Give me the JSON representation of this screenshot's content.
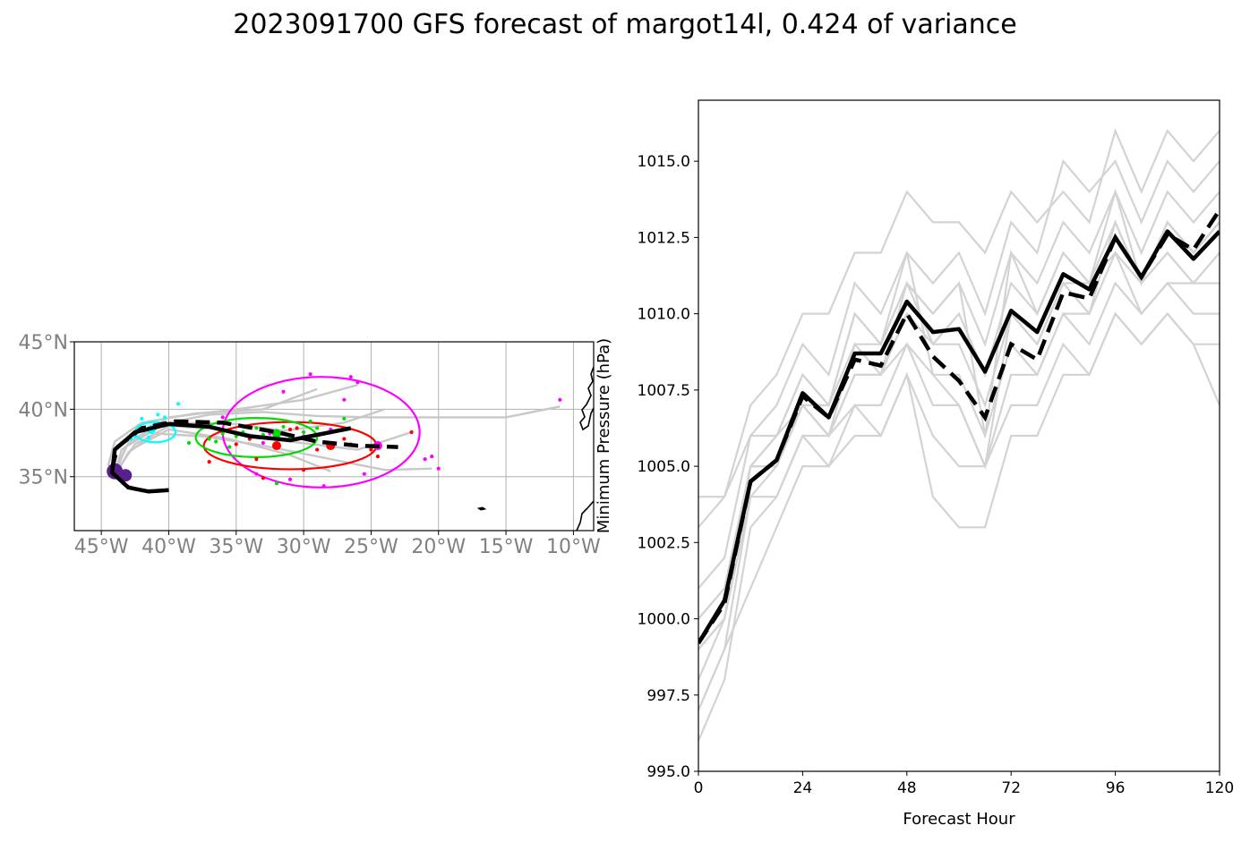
{
  "title": "2023091700 GFS forecast of margot14l, 0.424 of variance",
  "chart_data": [
    {
      "type": "scatter",
      "panel": "track map",
      "xlim": [
        -47,
        -8.5
      ],
      "ylim": [
        31,
        45
      ],
      "x_ticks": [
        -45,
        -40,
        -35,
        -30,
        -25,
        -20,
        -15,
        -10
      ],
      "x_tick_labels": [
        "45°W",
        "40°W",
        "35°W",
        "30°W",
        "25°W",
        "20°W",
        "15°W",
        "10°W"
      ],
      "y_ticks": [
        35,
        40,
        45
      ],
      "y_tick_labels": [
        "35°N",
        "40°N",
        "45°N"
      ],
      "grid": true,
      "mean_track": {
        "style": "solid black",
        "points": [
          [
            -40,
            34
          ],
          [
            -41.5,
            33.9
          ],
          [
            -43,
            34.2
          ],
          [
            -44.2,
            35.3
          ],
          [
            -44,
            37
          ],
          [
            -42.5,
            38.3
          ],
          [
            -40,
            38.9
          ],
          [
            -37,
            38.7
          ],
          [
            -34,
            38
          ],
          [
            -31,
            37.7
          ],
          [
            -28.5,
            38.2
          ],
          [
            -26.5,
            38.6
          ]
        ]
      },
      "control_track": {
        "style": "dashed black",
        "points": [
          [
            -44.2,
            35.6
          ],
          [
            -43.8,
            37.2
          ],
          [
            -42,
            38.6
          ],
          [
            -39.5,
            39.1
          ],
          [
            -36,
            39
          ],
          [
            -32,
            38.3
          ],
          [
            -29,
            37.6
          ],
          [
            -26,
            37.3
          ],
          [
            -23,
            37.2
          ]
        ]
      },
      "ensemble_tracks": [
        [
          [
            -44,
            35.2
          ],
          [
            -43.5,
            37
          ],
          [
            -41,
            38.8
          ],
          [
            -37,
            39.6
          ],
          [
            -33,
            39.8
          ],
          [
            -29,
            39.5
          ],
          [
            -25,
            39.4
          ],
          [
            -20,
            39.4
          ],
          [
            -15,
            39.4
          ],
          [
            -11,
            40.2
          ]
        ],
        [
          [
            -44,
            35.3
          ],
          [
            -43,
            37.5
          ],
          [
            -40,
            39.4
          ],
          [
            -35,
            40
          ],
          [
            -30,
            40.7
          ],
          [
            -26,
            41.8
          ]
        ],
        [
          [
            -44,
            35.1
          ],
          [
            -43.2,
            37.2
          ],
          [
            -40.5,
            38.8
          ],
          [
            -36,
            38.5
          ],
          [
            -31,
            37.6
          ],
          [
            -26,
            37
          ],
          [
            -22,
            38.3
          ]
        ],
        [
          [
            -44,
            35.2
          ],
          [
            -42.8,
            37
          ],
          [
            -40,
            38.5
          ],
          [
            -35.5,
            37.8
          ],
          [
            -31,
            36.6
          ],
          [
            -28,
            35.4
          ]
        ],
        [
          [
            -43.5,
            34.5
          ],
          [
            -42,
            34
          ],
          [
            -40,
            34
          ]
        ],
        [
          [
            -44.5,
            35.8
          ],
          [
            -44,
            37.6
          ],
          [
            -42,
            39
          ],
          [
            -38,
            39.7
          ],
          [
            -33,
            40
          ],
          [
            -29,
            41.5
          ]
        ],
        [
          [
            -44,
            35
          ],
          [
            -43,
            36.8
          ],
          [
            -41,
            38.2
          ],
          [
            -37.5,
            38
          ],
          [
            -33,
            37.3
          ],
          [
            -29,
            36.5
          ],
          [
            -24,
            35.5
          ],
          [
            -20.5,
            35.6
          ]
        ],
        [
          [
            -44,
            35.2
          ],
          [
            -42.5,
            37.4
          ],
          [
            -39.5,
            39
          ],
          [
            -35,
            38.9
          ],
          [
            -31.5,
            38.4
          ],
          [
            -27,
            39
          ],
          [
            -24,
            40
          ]
        ]
      ],
      "ellipses": [
        {
          "color": "#ff00ff",
          "center": [
            -28.7,
            38.3
          ],
          "width_deg": 14.6,
          "height_deg": 8.2
        },
        {
          "color": "#ff0000",
          "center": [
            -31,
            37.3
          ],
          "width_deg": 12.8,
          "height_deg": 3.5
        },
        {
          "color": "#00dd00",
          "center": [
            -33.5,
            37.9
          ],
          "width_deg": 9,
          "height_deg": 2.9
        },
        {
          "color": "#00ffff",
          "center": [
            -41,
            38.3
          ],
          "width_deg": 3,
          "height_deg": 1.5
        }
      ],
      "marker_colors": {
        "initial": "#5a1f8c",
        "day1": "#00ffff",
        "day3": "#00dd00",
        "day4": "#ff0000",
        "day5": "#ff00ff"
      },
      "cyan_points": [
        [
          -43.5,
          37.5
        ],
        [
          -42.5,
          38
        ],
        [
          -41.8,
          38.6
        ],
        [
          -41,
          39
        ],
        [
          -40.3,
          39.4
        ],
        [
          -42.8,
          37.8
        ],
        [
          -41.3,
          38.3
        ],
        [
          -40.5,
          38.8
        ],
        [
          -39.3,
          40.4
        ],
        [
          -42,
          39.3
        ],
        [
          -41.5,
          37.9
        ],
        [
          -40.8,
          39.6
        ]
      ],
      "green_points": [
        [
          -38.5,
          37.5
        ],
        [
          -37,
          37.8
        ],
        [
          -36,
          38.2
        ],
        [
          -35,
          38
        ],
        [
          -34,
          37.8
        ],
        [
          -33,
          38.1
        ],
        [
          -32,
          38.4
        ],
        [
          -31,
          37.9
        ],
        [
          -30,
          38.3
        ],
        [
          -29,
          38.6
        ],
        [
          -35.5,
          37.2
        ],
        [
          -33.5,
          38.6
        ],
        [
          -31.5,
          38.7
        ],
        [
          -29.5,
          39.1
        ],
        [
          -27,
          39.3
        ],
        [
          -36.5,
          37.6
        ],
        [
          -32,
          34.5
        ],
        [
          -34.5,
          38.3
        ]
      ],
      "red_points": [
        [
          -37,
          36.1
        ],
        [
          -35,
          37.4
        ],
        [
          -33.5,
          36.3
        ],
        [
          -32,
          37.2
        ],
        [
          -30,
          35.5
        ],
        [
          -28,
          37.3
        ],
        [
          -26.5,
          37.4
        ],
        [
          -25,
          37
        ],
        [
          -24.5,
          36.5
        ],
        [
          -22,
          38.3
        ],
        [
          -34,
          37.8
        ],
        [
          -31,
          38.5
        ],
        [
          -29,
          37
        ],
        [
          -27,
          37.8
        ],
        [
          -33,
          34.9
        ],
        [
          -30.5,
          38.6
        ]
      ],
      "magenta_points": [
        [
          -36,
          39.4
        ],
        [
          -31.5,
          41.3
        ],
        [
          -29.5,
          42.6
        ],
        [
          -26.5,
          42.4
        ],
        [
          -26,
          42
        ],
        [
          -28,
          38.5
        ],
        [
          -27,
          40.7
        ],
        [
          -30,
          38
        ],
        [
          -33,
          37.5
        ],
        [
          -33.5,
          35.2
        ],
        [
          -31,
          34.8
        ],
        [
          -28.5,
          34.3
        ],
        [
          -25.5,
          35.2
        ],
        [
          -21,
          36.3
        ],
        [
          -20,
          35.6
        ],
        [
          -20.5,
          36.5
        ],
        [
          -24.5,
          37.3
        ],
        [
          -11,
          40.7
        ],
        [
          -32.5,
          38.2
        ],
        [
          -29.8,
          37.8
        ]
      ]
    },
    {
      "type": "line",
      "panel": "minimum pressure",
      "xlabel": "Forecast Hour",
      "ylabel": "Minimum Pressure (hPa)",
      "xlim": [
        0,
        120
      ],
      "ylim": [
        995,
        1017
      ],
      "x_ticks": [
        0,
        24,
        48,
        72,
        96,
        120
      ],
      "y_ticks": [
        995,
        997.5,
        1000,
        1002.5,
        1005,
        1007.5,
        1010,
        1012.5,
        1015
      ],
      "y_tick_labels": [
        "995.0",
        "997.5",
        "1000.0",
        "1002.5",
        "1005.0",
        "1007.5",
        "1010.0",
        "1012.5",
        "1015.0"
      ],
      "x": [
        0,
        6,
        12,
        18,
        24,
        30,
        36,
        42,
        48,
        54,
        60,
        66,
        72,
        78,
        84,
        90,
        96,
        102,
        108,
        114,
        120
      ],
      "series": [
        {
          "style": "mean",
          "values": [
            999.2,
            1000.6,
            1004.5,
            1005.2,
            1007.4,
            1006.6,
            1008.7,
            1008.7,
            1010.4,
            1009.4,
            1009.5,
            1008.1,
            1010.1,
            1009.4,
            1011.3,
            1010.8,
            1012.5,
            1011.2,
            1012.7,
            1011.8,
            1012.7
          ]
        },
        {
          "style": "control",
          "values": [
            999.2,
            1000.5,
            1004.5,
            1005.2,
            1007.3,
            1006.6,
            1008.5,
            1008.3,
            1010,
            1008.6,
            1007.8,
            1006.6,
            1009,
            1008.5,
            1010.7,
            1010.5,
            1012.5,
            1011.2,
            1012.6,
            1012.1,
            1013.4
          ]
        },
        {
          "style": "member",
          "values": [
            1004,
            1004,
            1007,
            1008,
            1010,
            1010,
            1012,
            1012,
            1014,
            1013,
            1013,
            1012,
            1014,
            1013,
            1014,
            1013,
            1016,
            1014,
            1016,
            1015,
            1016
          ]
        },
        {
          "style": "member",
          "values": [
            1003,
            1004,
            1006,
            1007,
            1009,
            1008,
            1011,
            1010,
            1012,
            1011,
            1012,
            1010,
            1013,
            1012,
            1015,
            1014,
            1015,
            1013,
            1015,
            1014,
            1015
          ]
        },
        {
          "style": "member",
          "values": [
            1001,
            1002,
            1006,
            1006,
            1008,
            1007,
            1010,
            1009,
            1011,
            1010,
            1011,
            1009,
            1012,
            1011,
            1013,
            1012,
            1014,
            1012,
            1014,
            1013,
            1014
          ]
        },
        {
          "style": "member",
          "values": [
            1000,
            1001,
            1005,
            1006,
            1007,
            1007,
            1009,
            1009,
            1011,
            1009,
            1010,
            1008,
            1011,
            1010,
            1012,
            1011,
            1013,
            1011,
            1013,
            1012,
            1013
          ]
        },
        {
          "style": "member",
          "values": [
            999,
            1000,
            1005,
            1005,
            1007,
            1006,
            1008,
            1008,
            1010,
            1009,
            1009,
            1007,
            1010,
            1009,
            1011,
            1011,
            1012,
            1011,
            1012,
            1011,
            1012
          ]
        },
        {
          "style": "member",
          "values": [
            998,
            1000,
            1004,
            1005,
            1007,
            1006,
            1008,
            1008,
            1009,
            1008,
            1008,
            1006,
            1009,
            1008,
            1010,
            1010,
            1012,
            1010,
            1011,
            1011,
            1011
          ]
        },
        {
          "style": "member",
          "values": [
            997,
            999,
            1004,
            1004,
            1006,
            1006,
            1007,
            1007,
            1009,
            1007,
            1007,
            1005,
            1008,
            1008,
            1010,
            1009,
            1011,
            1010,
            1011,
            1010,
            1010
          ]
        },
        {
          "style": "member",
          "values": [
            996,
            998,
            1003,
            1004,
            1006,
            1005,
            1007,
            1006,
            1008,
            1006,
            1005,
            1005,
            1007,
            1007,
            1009,
            1008,
            1010,
            1009,
            1010,
            1009,
            1009
          ]
        },
        {
          "style": "member",
          "values": [
            997,
            999,
            1001,
            1003,
            1005,
            1005,
            1006,
            1006,
            1008,
            1004,
            1003,
            1003,
            1006,
            1006,
            1008,
            1008,
            1010,
            1009,
            1010,
            1009,
            1007
          ]
        },
        {
          "style": "member",
          "values": [
            1000,
            1001,
            1005,
            1006,
            1008,
            1007,
            1010,
            1009,
            1012,
            1008,
            1007,
            1005,
            1010,
            1009,
            1011,
            1010,
            1013,
            1011,
            1013,
            1012,
            1013
          ]
        },
        {
          "style": "member",
          "values": [
            999,
            1000,
            1005,
            1005,
            1007,
            1006,
            1009,
            1008,
            1011,
            1010,
            1011,
            1006,
            1012,
            1010,
            1012,
            1011,
            1014,
            1011,
            1013,
            1012,
            1013
          ]
        }
      ]
    }
  ]
}
